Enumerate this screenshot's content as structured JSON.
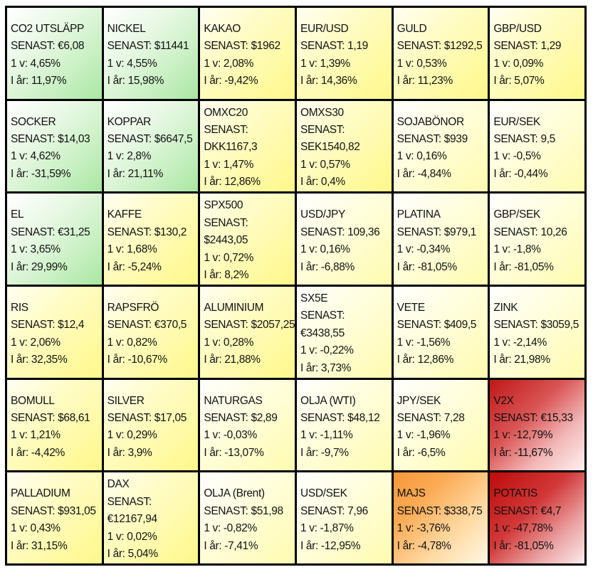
{
  "cells": [
    {
      "name": "CO2 UTSLÄPP",
      "senast": "SENAST: €6,08",
      "v1": "1 v: 4,65%",
      "iar": "I år: 11,97%"
    },
    {
      "name": "NICKEL",
      "senast": "SENAST: $11441",
      "v1": "1 v: 4,55%",
      "iar": "I år: 15,98%"
    },
    {
      "name": "KAKAO",
      "senast": "SENAST: $1962",
      "v1": "1 v: 2,08%",
      "iar": "I år: -9,42%"
    },
    {
      "name": "EUR/USD",
      "senast": "SENAST: 1,19",
      "v1": "1 v: 1,39%",
      "iar": "I år: 14,36%"
    },
    {
      "name": "GULD",
      "senast": "SENAST: $1292,5",
      "v1": "1 v: 0,53%",
      "iar": "I år: 11,23%"
    },
    {
      "name": "GBP/USD",
      "senast": "SENAST: 1,29",
      "v1": "1 v: 0,09%",
      "iar": "I år: 5,07%"
    },
    {
      "name": "SOCKER",
      "senast": "SENAST: $14,03",
      "v1": "1 v: 4,62%",
      "iar": "I år: -31,59%"
    },
    {
      "name": "KOPPAR",
      "senast": "SENAST: $6647,5",
      "v1": "1 v: 2,8%",
      "iar": "I år: 21,11%"
    },
    {
      "name": "OMXC20",
      "senast_label": "SENAST:",
      "senast_value": "DKK1167,3",
      "v1": "1 v: 1,47%",
      "iar": "I år: 12,86%"
    },
    {
      "name": "OMXS30",
      "senast_label": "SENAST:",
      "senast_value": "SEK1540,82",
      "v1": "1 v: 0,57%",
      "iar": "I år: 0,4%"
    },
    {
      "name": "SOJABÖNOR",
      "senast": "SENAST: $939",
      "v1": "1 v: 0,16%",
      "iar": "I år: -4,84%"
    },
    {
      "name": "EUR/SEK",
      "senast": "SENAST: 9,5",
      "v1": "1 v: -0,5%",
      "iar": "I år: -0,44%"
    },
    {
      "name": "EL",
      "senast": "SENAST: €31,25",
      "v1": "1 v: 3,65%",
      "iar": "I år: 29,99%"
    },
    {
      "name": "KAFFE",
      "senast": "SENAST: $130,2",
      "v1": "1 v: 1,68%",
      "iar": "I år: -5,24%"
    },
    {
      "name": "SPX500",
      "senast_label": "SENAST:",
      "senast_value": "$2443,05",
      "v1": "1 v: 0,72%",
      "iar": "I år: 8,2%"
    },
    {
      "name": "USD/JPY",
      "senast": "SENAST: 109,36",
      "v1": "1 v: 0,16%",
      "iar": "I år: -6,88%"
    },
    {
      "name": "PLATINA",
      "senast": "SENAST: $979,1",
      "v1": "1 v: -0,34%",
      "iar": "I år: -81,05%"
    },
    {
      "name": "GBP/SEK",
      "senast": "SENAST: 10,26",
      "v1": "1 v: -1,8%",
      "iar": "I år: -81,05%"
    },
    {
      "name": "RIS",
      "senast": "SENAST: $12,4",
      "v1": "1 v: 2,06%",
      "iar": "I år: 32,35%"
    },
    {
      "name": "RAPSFRÖ",
      "senast": "SENAST: €370,5",
      "v1": "1 v: 0,82%",
      "iar": "I år: -10,67%"
    },
    {
      "name": "ALUMINIUM",
      "senast": "SENAST: $2057,25",
      "v1": "1 v: 0,28%",
      "iar": "I år: 21,88%"
    },
    {
      "name": "SX5E",
      "senast_label": "SENAST:",
      "senast_value": "€3438,55",
      "v1": "1 v: -0,22%",
      "iar": "I år: 3,73%"
    },
    {
      "name": "VETE",
      "senast": "SENAST: $409,5",
      "v1": "1 v: -1,56%",
      "iar": "I år: 12,86%"
    },
    {
      "name": "ZINK",
      "senast": "SENAST: $3059,5",
      "v1": "1 v: -2,14%",
      "iar": "I år: 21,98%"
    },
    {
      "name": "BOMULL",
      "senast": "SENAST: $68,61",
      "v1": "1 v: 1,21%",
      "iar": "I år: -4,42%"
    },
    {
      "name": "SILVER",
      "senast": "SENAST: $17,05",
      "v1": "1 v: 0,29%",
      "iar": "I år: 3,9%"
    },
    {
      "name": "NATURGAS",
      "senast": "SENAST: $2,89",
      "v1": "1 v: -0,03%",
      "iar": "I år: -13,07%"
    },
    {
      "name": "OLJA (WTI)",
      "senast": "SENAST: $48,12",
      "v1": "1 v: -1,11%",
      "iar": "I år: -9,7%"
    },
    {
      "name": "JPY/SEK",
      "senast": "SENAST: 7,28",
      "v1": "1 v: -1,96%",
      "iar": "I år: -6,5%"
    },
    {
      "name": "V2X",
      "senast": "SENAST: €15,33",
      "v1": "1 v: -12,79%",
      "iar": "I år: -11,67%"
    },
    {
      "name": "PALLADIUM",
      "senast": "SENAST: $931,05",
      "v1": "1 v: 0,43%",
      "iar": "I år: 31,15%"
    },
    {
      "name": "DAX",
      "senast_label": "SENAST:",
      "senast_value": "€12167,94",
      "v1": "1 v: 0,02%",
      "iar": "I år: 5,04%"
    },
    {
      "name": "OLJA (Brent)",
      "senast": "SENAST: $51,98",
      "v1": "1 v: -0,82%",
      "iar": "I år: -7,41%"
    },
    {
      "name": "USD/SEK",
      "senast": "SENAST: 7,96",
      "v1": "1 v: -1,87%",
      "iar": "I år: -12,95%"
    },
    {
      "name": "MAJS",
      "senast": "SENAST: $338,75",
      "v1": "1 v: -3,76%",
      "iar": "I år: -4,78%"
    },
    {
      "name": "POTATIS",
      "senast": "SENAST: €4,7",
      "v1": "1 v: -47,78%",
      "iar": "I år: -81,05%"
    }
  ],
  "colors": {
    "green": "#a9e7a2",
    "yellow": "#fff88a",
    "orange": "#f6973a",
    "red": "#c01818",
    "name_dark": "#111111",
    "name_light": "#ffffff"
  }
}
